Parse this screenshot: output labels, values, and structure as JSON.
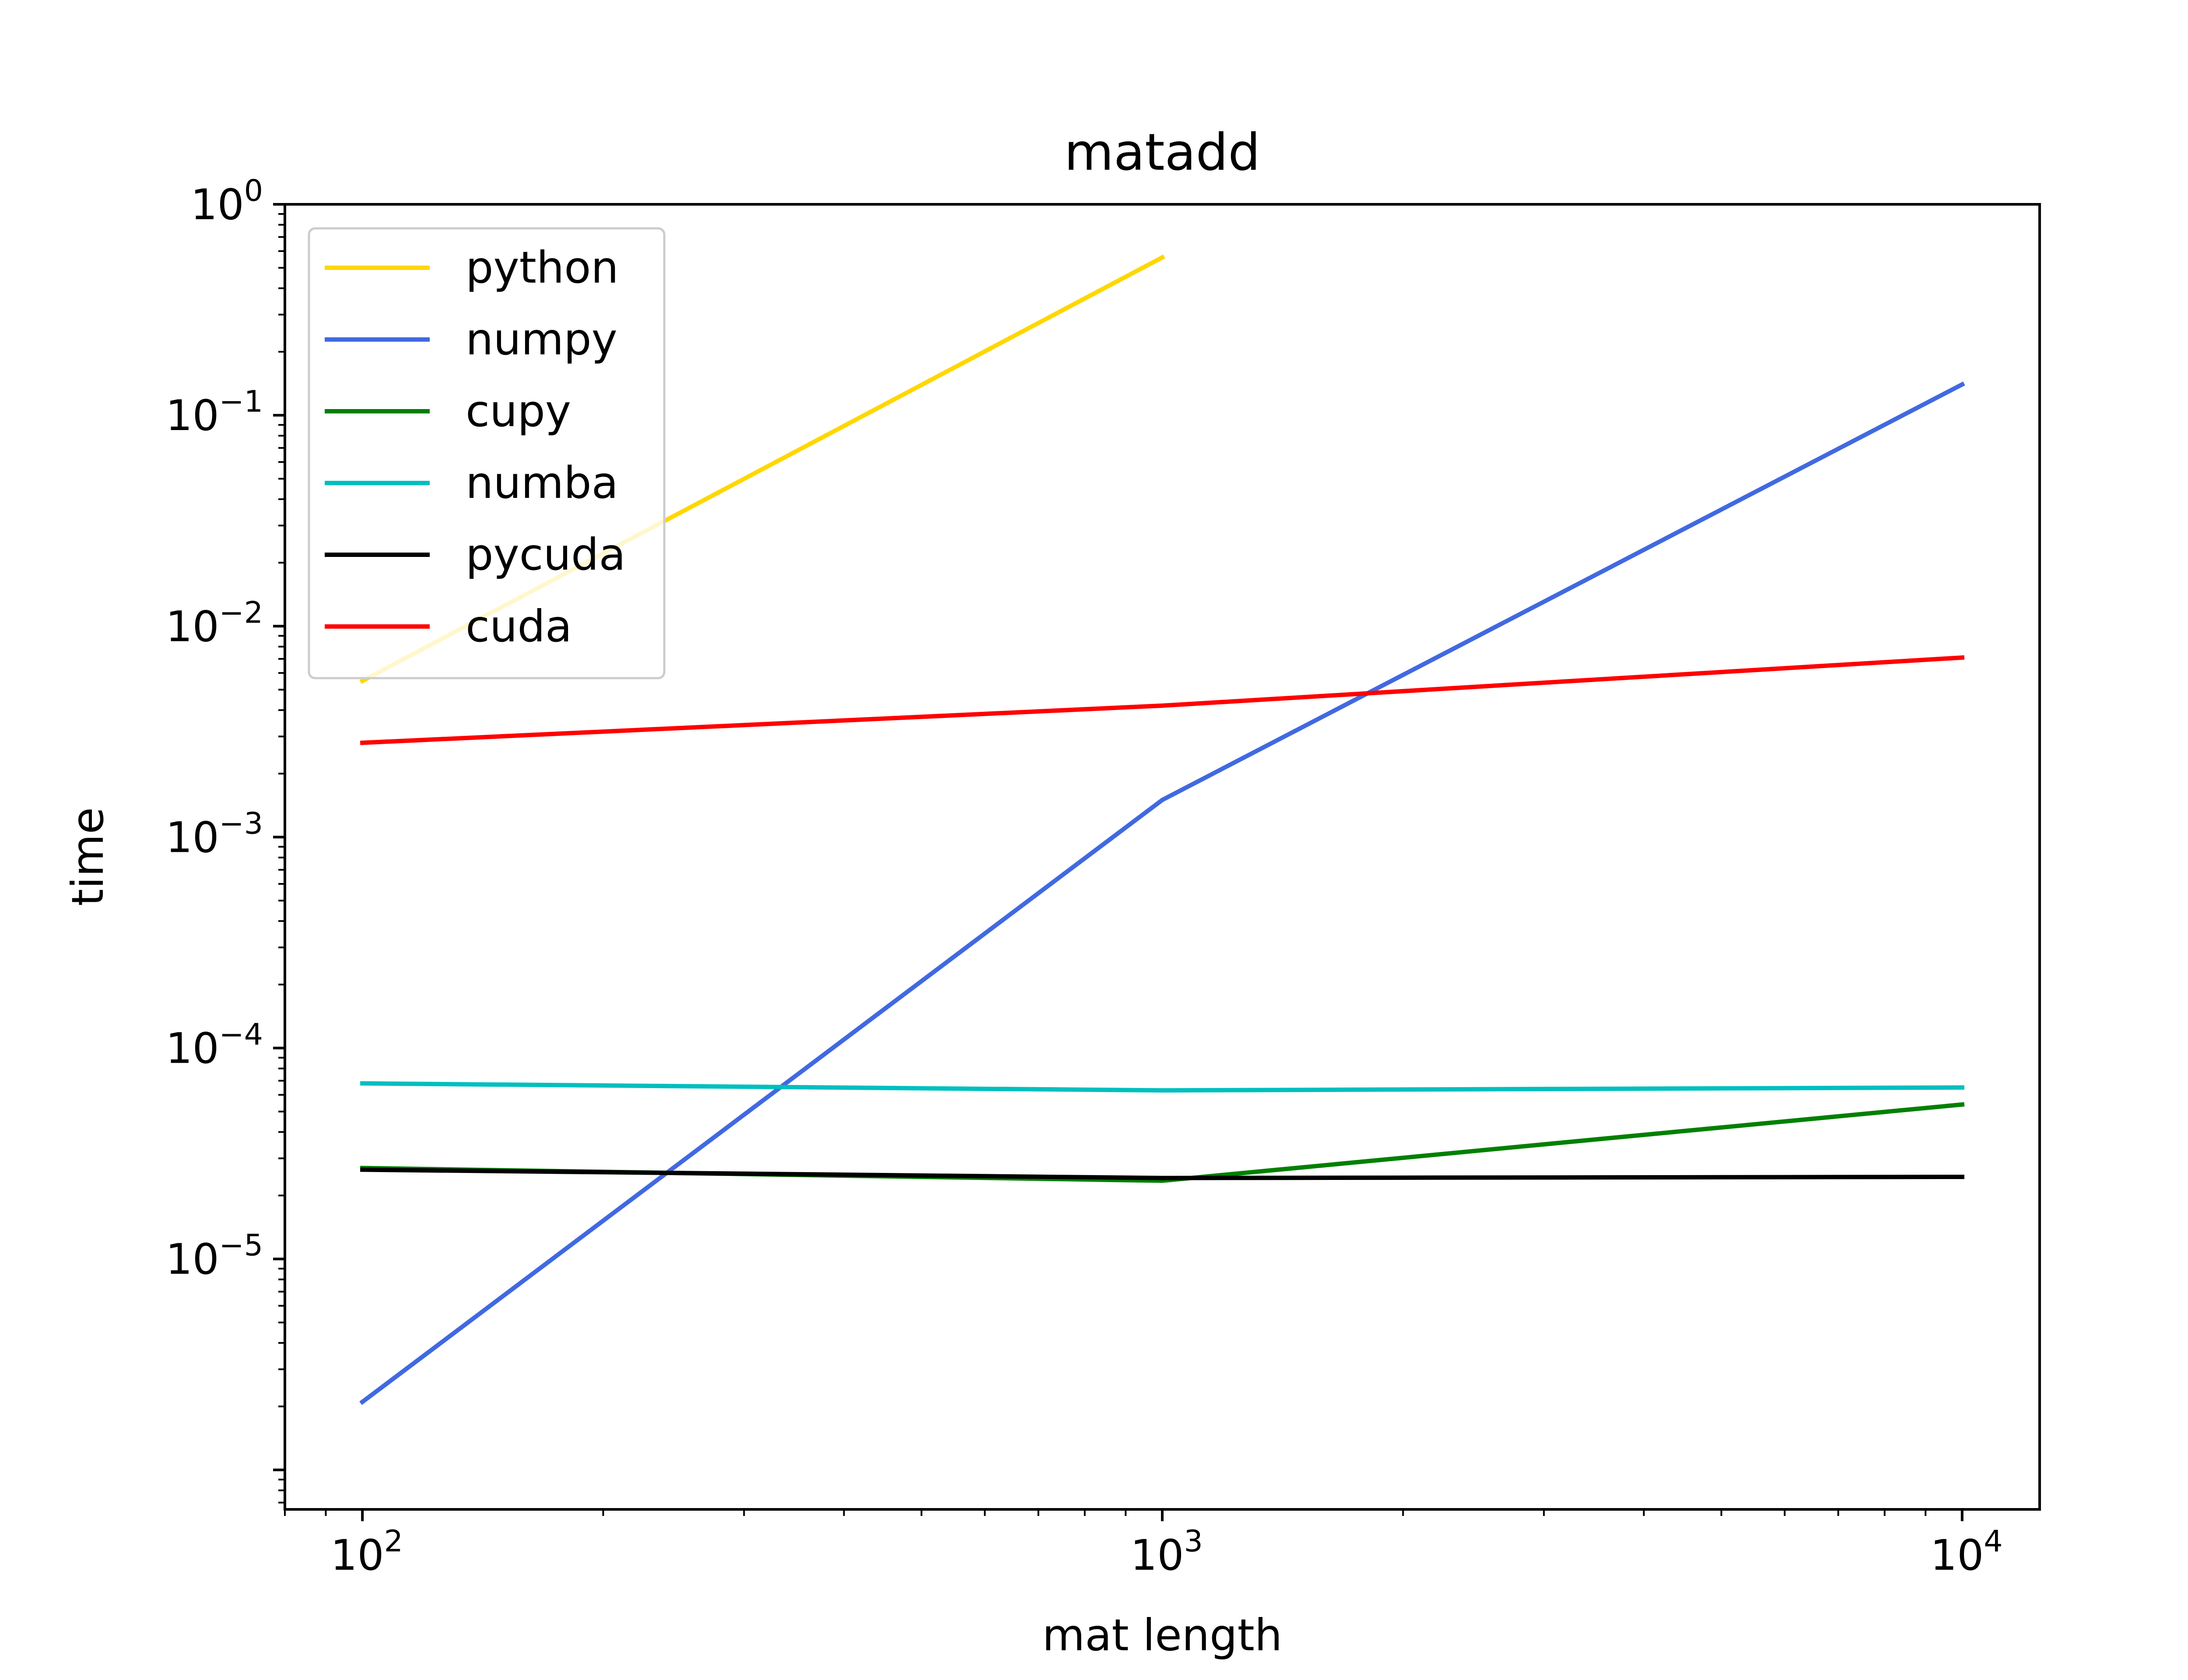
{
  "chart_data": {
    "type": "line",
    "title": "matadd",
    "xlabel": "mat length",
    "ylabel": "time",
    "xscale": "log",
    "yscale": "log",
    "xlim": [
      80,
      12500
    ],
    "ylim": [
      6.5e-07,
      1
    ],
    "grid": false,
    "legend_position": "top-left",
    "x_ticks": [
      {
        "base": "10",
        "exp": "2",
        "value": 100
      },
      {
        "base": "10",
        "exp": "3",
        "value": 1000
      },
      {
        "base": "10",
        "exp": "4",
        "value": 10000
      }
    ],
    "y_ticks": [
      {
        "base": "10",
        "exp": "0",
        "value": 1
      },
      {
        "base": "10",
        "exp": "−1",
        "value": 0.1
      },
      {
        "base": "10",
        "exp": "−2",
        "value": 0.01
      },
      {
        "base": "10",
        "exp": "−3",
        "value": 0.001
      },
      {
        "base": "10",
        "exp": "−4",
        "value": 0.0001
      },
      {
        "base": "10",
        "exp": "−5",
        "value": 1e-05
      }
    ],
    "series": [
      {
        "name": "python",
        "color": "#FFD700",
        "x": [
          100,
          1000
        ],
        "y": [
          0.0055,
          0.56
        ]
      },
      {
        "name": "numpy",
        "color": "#4169E1",
        "x": [
          100,
          1000,
          10000
        ],
        "y": [
          2.1e-06,
          0.0015,
          0.14
        ]
      },
      {
        "name": "cupy",
        "color": "#008000",
        "x": [
          100,
          1000,
          10000
        ],
        "y": [
          2.7e-05,
          2.35e-05,
          5.4e-05
        ]
      },
      {
        "name": "numba",
        "color": "#00BFBF",
        "x": [
          100,
          1000,
          10000
        ],
        "y": [
          6.8e-05,
          6.3e-05,
          6.5e-05
        ]
      },
      {
        "name": "pycuda",
        "color": "#000000",
        "x": [
          100,
          1000,
          10000
        ],
        "y": [
          2.65e-05,
          2.42e-05,
          2.45e-05
        ]
      },
      {
        "name": "cuda",
        "color": "#FF0000",
        "x": [
          100,
          1000,
          10000
        ],
        "y": [
          0.0028,
          0.0042,
          0.0071
        ]
      }
    ]
  }
}
